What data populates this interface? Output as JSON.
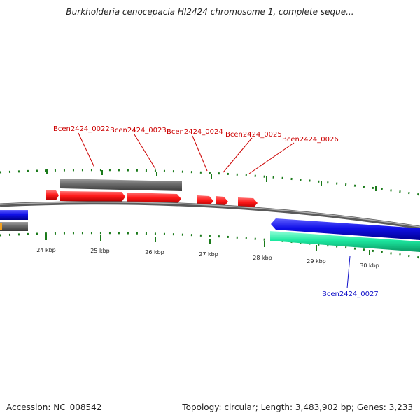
{
  "title": "Burkholderia cenocepacia HI2424 chromosome 1, complete seque...",
  "footer": {
    "accession": "Accession: NC_008542",
    "summary": "Topology: circular; Length: 3,483,902 bp; Genes: 3,233"
  },
  "colors": {
    "forward_cds": "#ff1a1a",
    "reverse_cds": "#1010e8",
    "gene_bar": "#6a6a6a",
    "rna_bar": "#1de8a0",
    "backbone": "#808080",
    "tick": "#1a7a1a",
    "forward_label": "#cc0000",
    "reverse_label": "#1010c8",
    "orange_feature": "#f0a020"
  },
  "ruler": {
    "tick_labels": [
      "24 kbp",
      "25 kbp",
      "26 kbp",
      "27 kbp",
      "28 kbp",
      "29 kbp",
      "30 kbp"
    ]
  },
  "gene_labels": [
    {
      "name": "Bcen2424_0022",
      "strand": "forward"
    },
    {
      "name": "Bcen2424_0023",
      "strand": "forward"
    },
    {
      "name": "Bcen2424_0024",
      "strand": "forward"
    },
    {
      "name": "Bcen2424_0025",
      "strand": "forward"
    },
    {
      "name": "Bcen2424_0026",
      "strand": "forward"
    },
    {
      "name": "Bcen2424_0027",
      "strand": "reverse"
    }
  ]
}
